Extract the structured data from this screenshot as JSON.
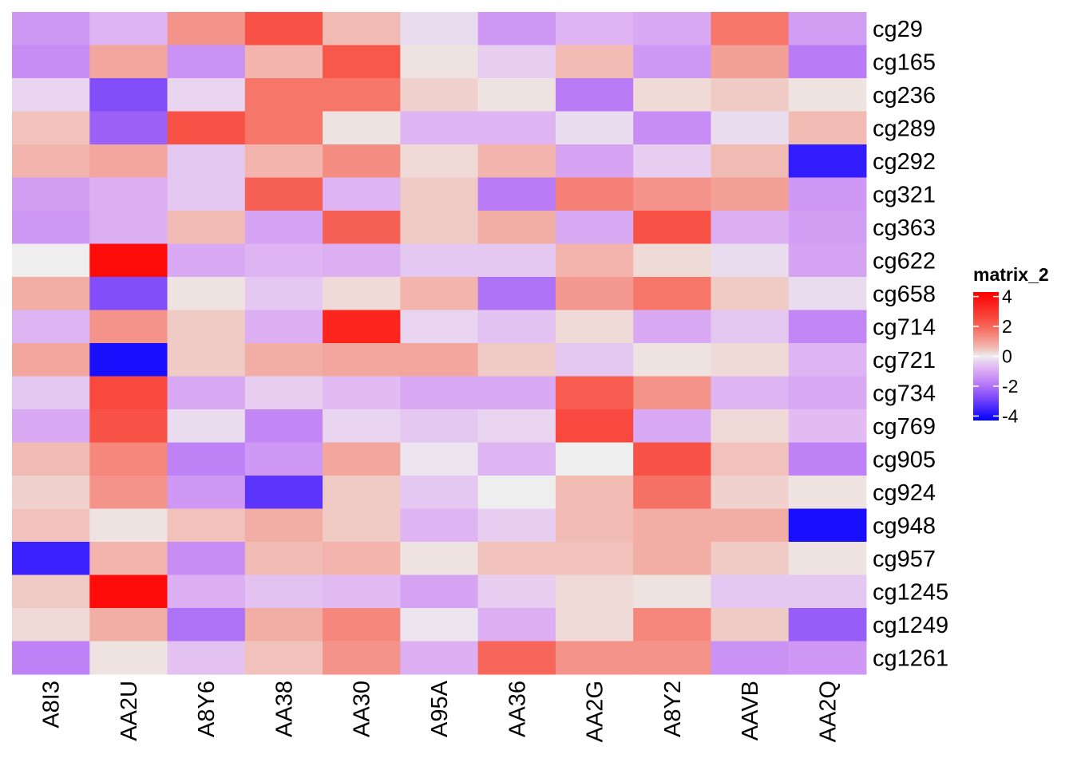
{
  "chart_data": {
    "type": "heatmap",
    "title": "",
    "legend": {
      "title": "matrix_2",
      "ticks": [
        "4",
        "2",
        "0",
        "-2",
        "-4"
      ],
      "tick_values": [
        4,
        2,
        0,
        -2,
        -4
      ],
      "placement": "right",
      "range": [
        -4.3,
        4.3
      ]
    },
    "colors": {
      "low": "#0000ff",
      "mid": "#eeeeee",
      "high": "#ff0000"
    },
    "columns": [
      "A8I3",
      "AA2U",
      "A8Y6",
      "AA38",
      "AA30",
      "A95A",
      "AA36",
      "AA2G",
      "A8Y2",
      "AAVB",
      "AA2Q"
    ],
    "rows": [
      "cg29",
      "cg165",
      "cg236",
      "cg289",
      "cg292",
      "cg321",
      "cg363",
      "cg622",
      "cg658",
      "cg714",
      "cg721",
      "cg734",
      "cg769",
      "cg905",
      "cg924",
      "cg948",
      "cg957",
      "cg1245",
      "cg1249",
      "cg1261"
    ],
    "values": [
      [
        -1.3,
        -0.8,
        1.2,
        2.4,
        0.6,
        -0.2,
        -1.3,
        -0.8,
        -1.0,
        1.7,
        -1.2
      ],
      [
        -1.5,
        0.9,
        -1.4,
        0.7,
        2.3,
        0.1,
        -0.4,
        0.6,
        -1.3,
        1.0,
        -1.8
      ],
      [
        -0.3,
        -2.7,
        -0.3,
        1.7,
        1.7,
        0.3,
        0.1,
        -1.8,
        0.2,
        0.4,
        0.1
      ],
      [
        0.5,
        -2.3,
        2.4,
        1.7,
        0.1,
        -0.8,
        -0.8,
        -0.2,
        -1.5,
        -0.2,
        0.6
      ],
      [
        0.7,
        0.9,
        -0.5,
        0.7,
        1.3,
        0.2,
        0.7,
        -1.1,
        -0.4,
        0.6,
        -3.7
      ],
      [
        -1.2,
        -0.9,
        -0.5,
        2.1,
        -0.8,
        0.4,
        -1.8,
        1.5,
        1.2,
        1.0,
        -1.3
      ],
      [
        -1.3,
        -0.9,
        0.6,
        -1.1,
        2.1,
        0.4,
        0.8,
        -1.0,
        2.4,
        -0.9,
        -1.2
      ],
      [
        0.0,
        4.0,
        -1.0,
        -0.8,
        -0.9,
        -0.5,
        -0.5,
        0.7,
        0.2,
        -0.2,
        -1.1
      ],
      [
        0.8,
        -2.7,
        0.1,
        -0.5,
        0.2,
        0.7,
        -2.0,
        1.1,
        1.7,
        0.4,
        -0.2
      ],
      [
        -0.8,
        1.2,
        0.4,
        -0.9,
        3.4,
        -0.3,
        -0.6,
        0.2,
        -1.0,
        -0.5,
        -1.6
      ],
      [
        0.9,
        -4.0,
        0.4,
        0.8,
        0.9,
        0.9,
        0.4,
        -0.5,
        0.1,
        0.2,
        -0.8
      ],
      [
        -0.5,
        2.6,
        -1.0,
        -0.4,
        -0.7,
        -1.0,
        -1.0,
        2.2,
        1.2,
        -0.8,
        -1.0
      ],
      [
        -1.0,
        2.4,
        -0.2,
        -1.6,
        -0.3,
        -0.5,
        -0.3,
        2.6,
        -1.0,
        0.2,
        -0.7
      ],
      [
        0.6,
        1.4,
        -1.7,
        -1.3,
        0.9,
        -0.1,
        -0.8,
        0.0,
        2.4,
        0.5,
        -1.7
      ],
      [
        0.3,
        1.2,
        -1.3,
        -3.2,
        0.4,
        -0.5,
        0.0,
        0.6,
        1.8,
        0.3,
        0.1
      ],
      [
        0.5,
        0.1,
        0.5,
        0.8,
        0.4,
        -0.8,
        -0.4,
        0.6,
        0.8,
        0.8,
        -4.0
      ],
      [
        -3.6,
        0.7,
        -1.5,
        0.6,
        0.7,
        0.1,
        0.5,
        0.5,
        0.8,
        0.4,
        0.1
      ],
      [
        0.4,
        4.0,
        -0.9,
        -0.6,
        -0.7,
        -1.1,
        -0.4,
        0.2,
        0.1,
        -0.5,
        -0.5
      ],
      [
        0.2,
        0.8,
        -2.0,
        0.8,
        1.4,
        -0.1,
        -0.9,
        0.2,
        1.4,
        0.4,
        -2.4
      ],
      [
        -1.7,
        0.1,
        -0.6,
        0.5,
        1.2,
        -0.9,
        2.0,
        1.2,
        1.2,
        -1.4,
        -1.3
      ]
    ],
    "grid": false
  }
}
